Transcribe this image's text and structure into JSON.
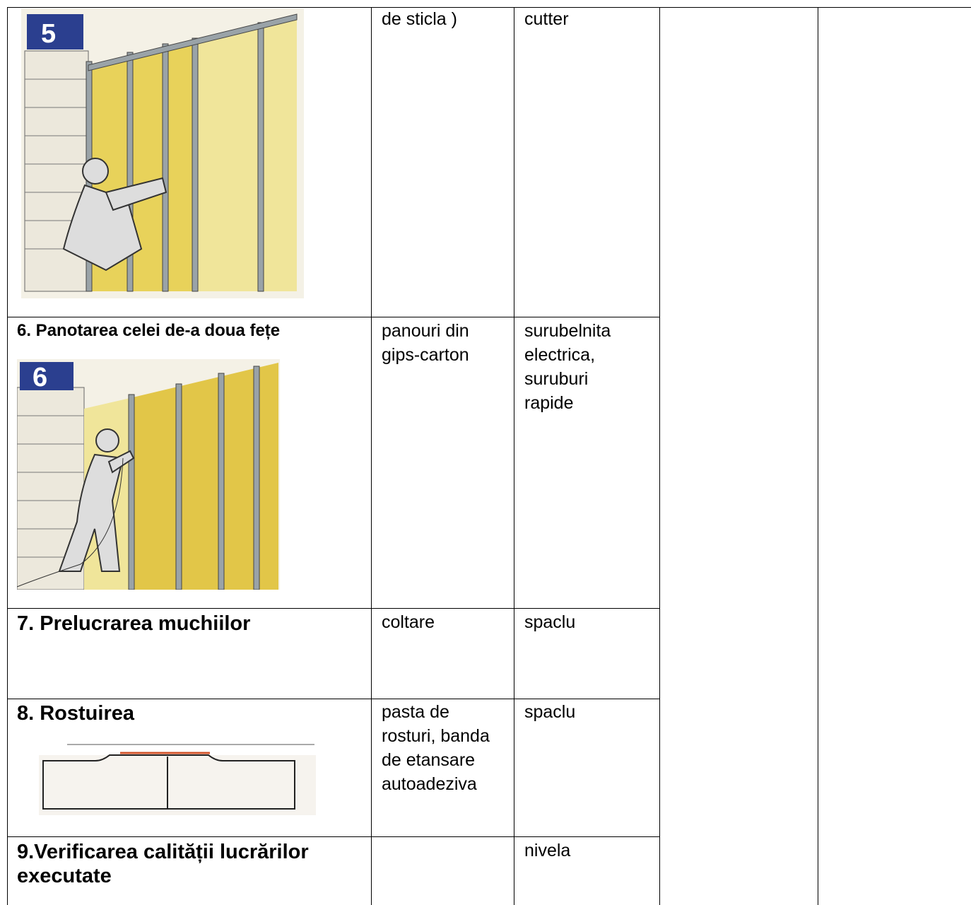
{
  "table": {
    "rows": [
      {
        "badge": "5",
        "materials": "de sticla )",
        "tools": "cutter"
      },
      {
        "step": "6. Panotarea celei de-a doua fețe",
        "badge": "6",
        "materials": "panouri din gips-carton",
        "tools": "surubelnita electrica, suruburi rapide"
      },
      {
        "step": "7. Prelucrarea muchiilor",
        "materials": "coltare",
        "tools": "spaclu"
      },
      {
        "step": "8. Rostuirea",
        "materials": "pasta de rosturi, banda de etansare autoadeziva",
        "tools": "spaclu"
      },
      {
        "step": "9.Verificarea calității lucrărilor executate",
        "tools": "nivela"
      }
    ]
  }
}
